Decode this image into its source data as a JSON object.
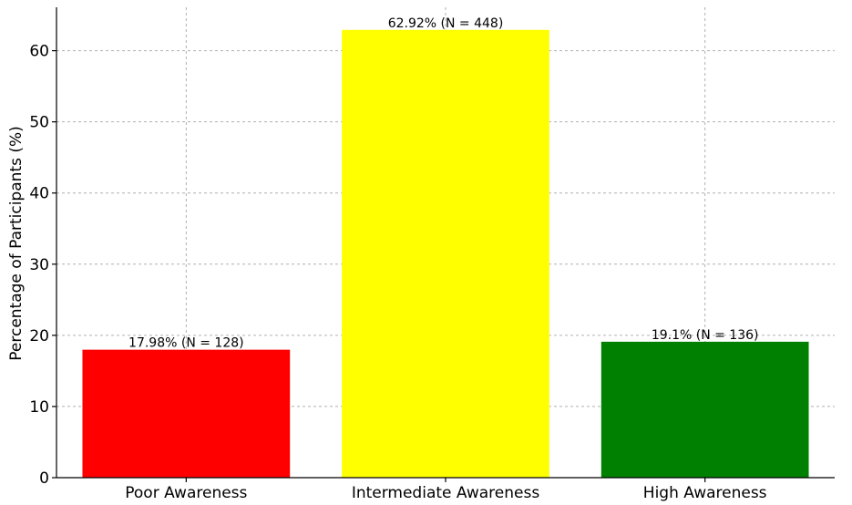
{
  "chart_data": {
    "type": "bar",
    "categories": [
      "Poor Awareness",
      "Intermediate Awareness",
      "High Awareness"
    ],
    "values": [
      17.98,
      62.92,
      19.1
    ],
    "data_labels": [
      "17.98% (N = 128)",
      "62.92% (N = 448)",
      "19.1% (N = 136)"
    ],
    "colors": [
      "#ff0000",
      "#ffff00",
      "#008000"
    ],
    "title": "",
    "xlabel": "",
    "ylabel": "Percentage of Participants (%)",
    "ylim": [
      0,
      66.1
    ],
    "yticks": [
      0,
      10,
      20,
      30,
      40,
      50,
      60
    ],
    "grid": true,
    "legend": "none"
  }
}
